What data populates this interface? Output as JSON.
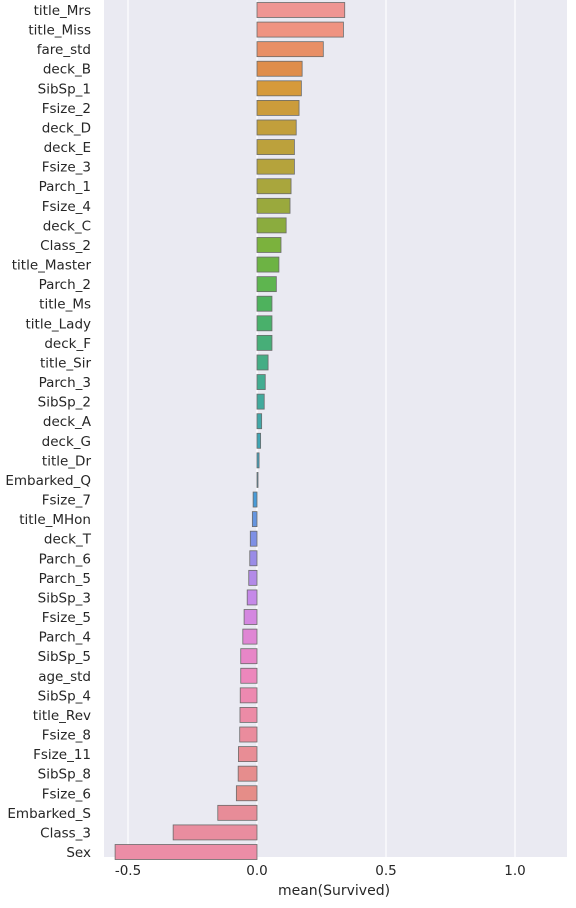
{
  "chart_data": {
    "type": "bar",
    "orientation": "horizontal",
    "xlabel": "mean(Survived)",
    "ylabel": "",
    "xlim": [
      -0.6,
      1.2
    ],
    "xticks": [
      -0.5,
      0.0,
      0.5,
      1.0
    ],
    "xtick_labels": [
      "-0.5",
      "0.0",
      "0.5",
      "1.0"
    ],
    "grid": true,
    "categories": [
      "title_Mrs",
      "title_Miss",
      "fare_std",
      "deck_B",
      "SibSp_1",
      "Fsize_2",
      "deck_D",
      "deck_E",
      "Fsize_3",
      "Parch_1",
      "Fsize_4",
      "deck_C",
      "Class_2",
      "title_Master",
      "Parch_2",
      "title_Ms",
      "title_Lady",
      "deck_F",
      "title_Sir",
      "Parch_3",
      "SibSp_2",
      "deck_A",
      "deck_G",
      "title_Dr",
      "Embarked_Q",
      "Fsize_7",
      "title_MHon",
      "deck_T",
      "Parch_6",
      "Parch_5",
      "SibSp_3",
      "Fsize_5",
      "Parch_4",
      "SibSp_5",
      "age_std",
      "SibSp_4",
      "title_Rev",
      "Fsize_8",
      "Fsize_11",
      "SibSp_8",
      "Fsize_6",
      "Embarked_S",
      "Class_3",
      "Sex"
    ],
    "values": [
      0.34,
      0.335,
      0.257,
      0.175,
      0.172,
      0.163,
      0.152,
      0.145,
      0.145,
      0.132,
      0.128,
      0.113,
      0.093,
      0.085,
      0.075,
      0.058,
      0.058,
      0.058,
      0.043,
      0.032,
      0.028,
      0.018,
      0.014,
      0.008,
      0.003,
      -0.015,
      -0.018,
      -0.026,
      -0.028,
      -0.032,
      -0.038,
      -0.05,
      -0.055,
      -0.063,
      -0.063,
      -0.065,
      -0.066,
      -0.067,
      -0.072,
      -0.073,
      -0.08,
      -0.152,
      -0.325,
      -0.55
    ],
    "colors": [
      "#ef9592",
      "#ef9381",
      "#e88f66",
      "#df8d4a",
      "#d69a3b",
      "#cc9c3b",
      "#c29f3c",
      "#bca13c",
      "#b5a33c",
      "#a9a63d",
      "#9aa93d",
      "#8bac3e",
      "#7bb23d",
      "#6db344",
      "#5eb54f",
      "#4eb25d",
      "#49b06b",
      "#47ae78",
      "#45ad85",
      "#43ac91",
      "#42aa9d",
      "#42a8a8",
      "#40a5b4",
      "#3ea2bf",
      "#3e9fcb",
      "#489bd8",
      "#6595e0",
      "#7e90e5",
      "#9a8ce7",
      "#b38ae8",
      "#c589e8",
      "#d487e0",
      "#df86d4",
      "#e786c7",
      "#ec87bc",
      "#ed89b0",
      "#ec8ba6",
      "#ea8c9d",
      "#e88d95",
      "#e68d8d",
      "#e58d88",
      "#e78c98",
      "#e98d9f",
      "#ec8da6"
    ],
    "bar_edge_color": "#6b6b6b",
    "background": "#eaeaf2",
    "gridline_color": "#ffffff"
  }
}
